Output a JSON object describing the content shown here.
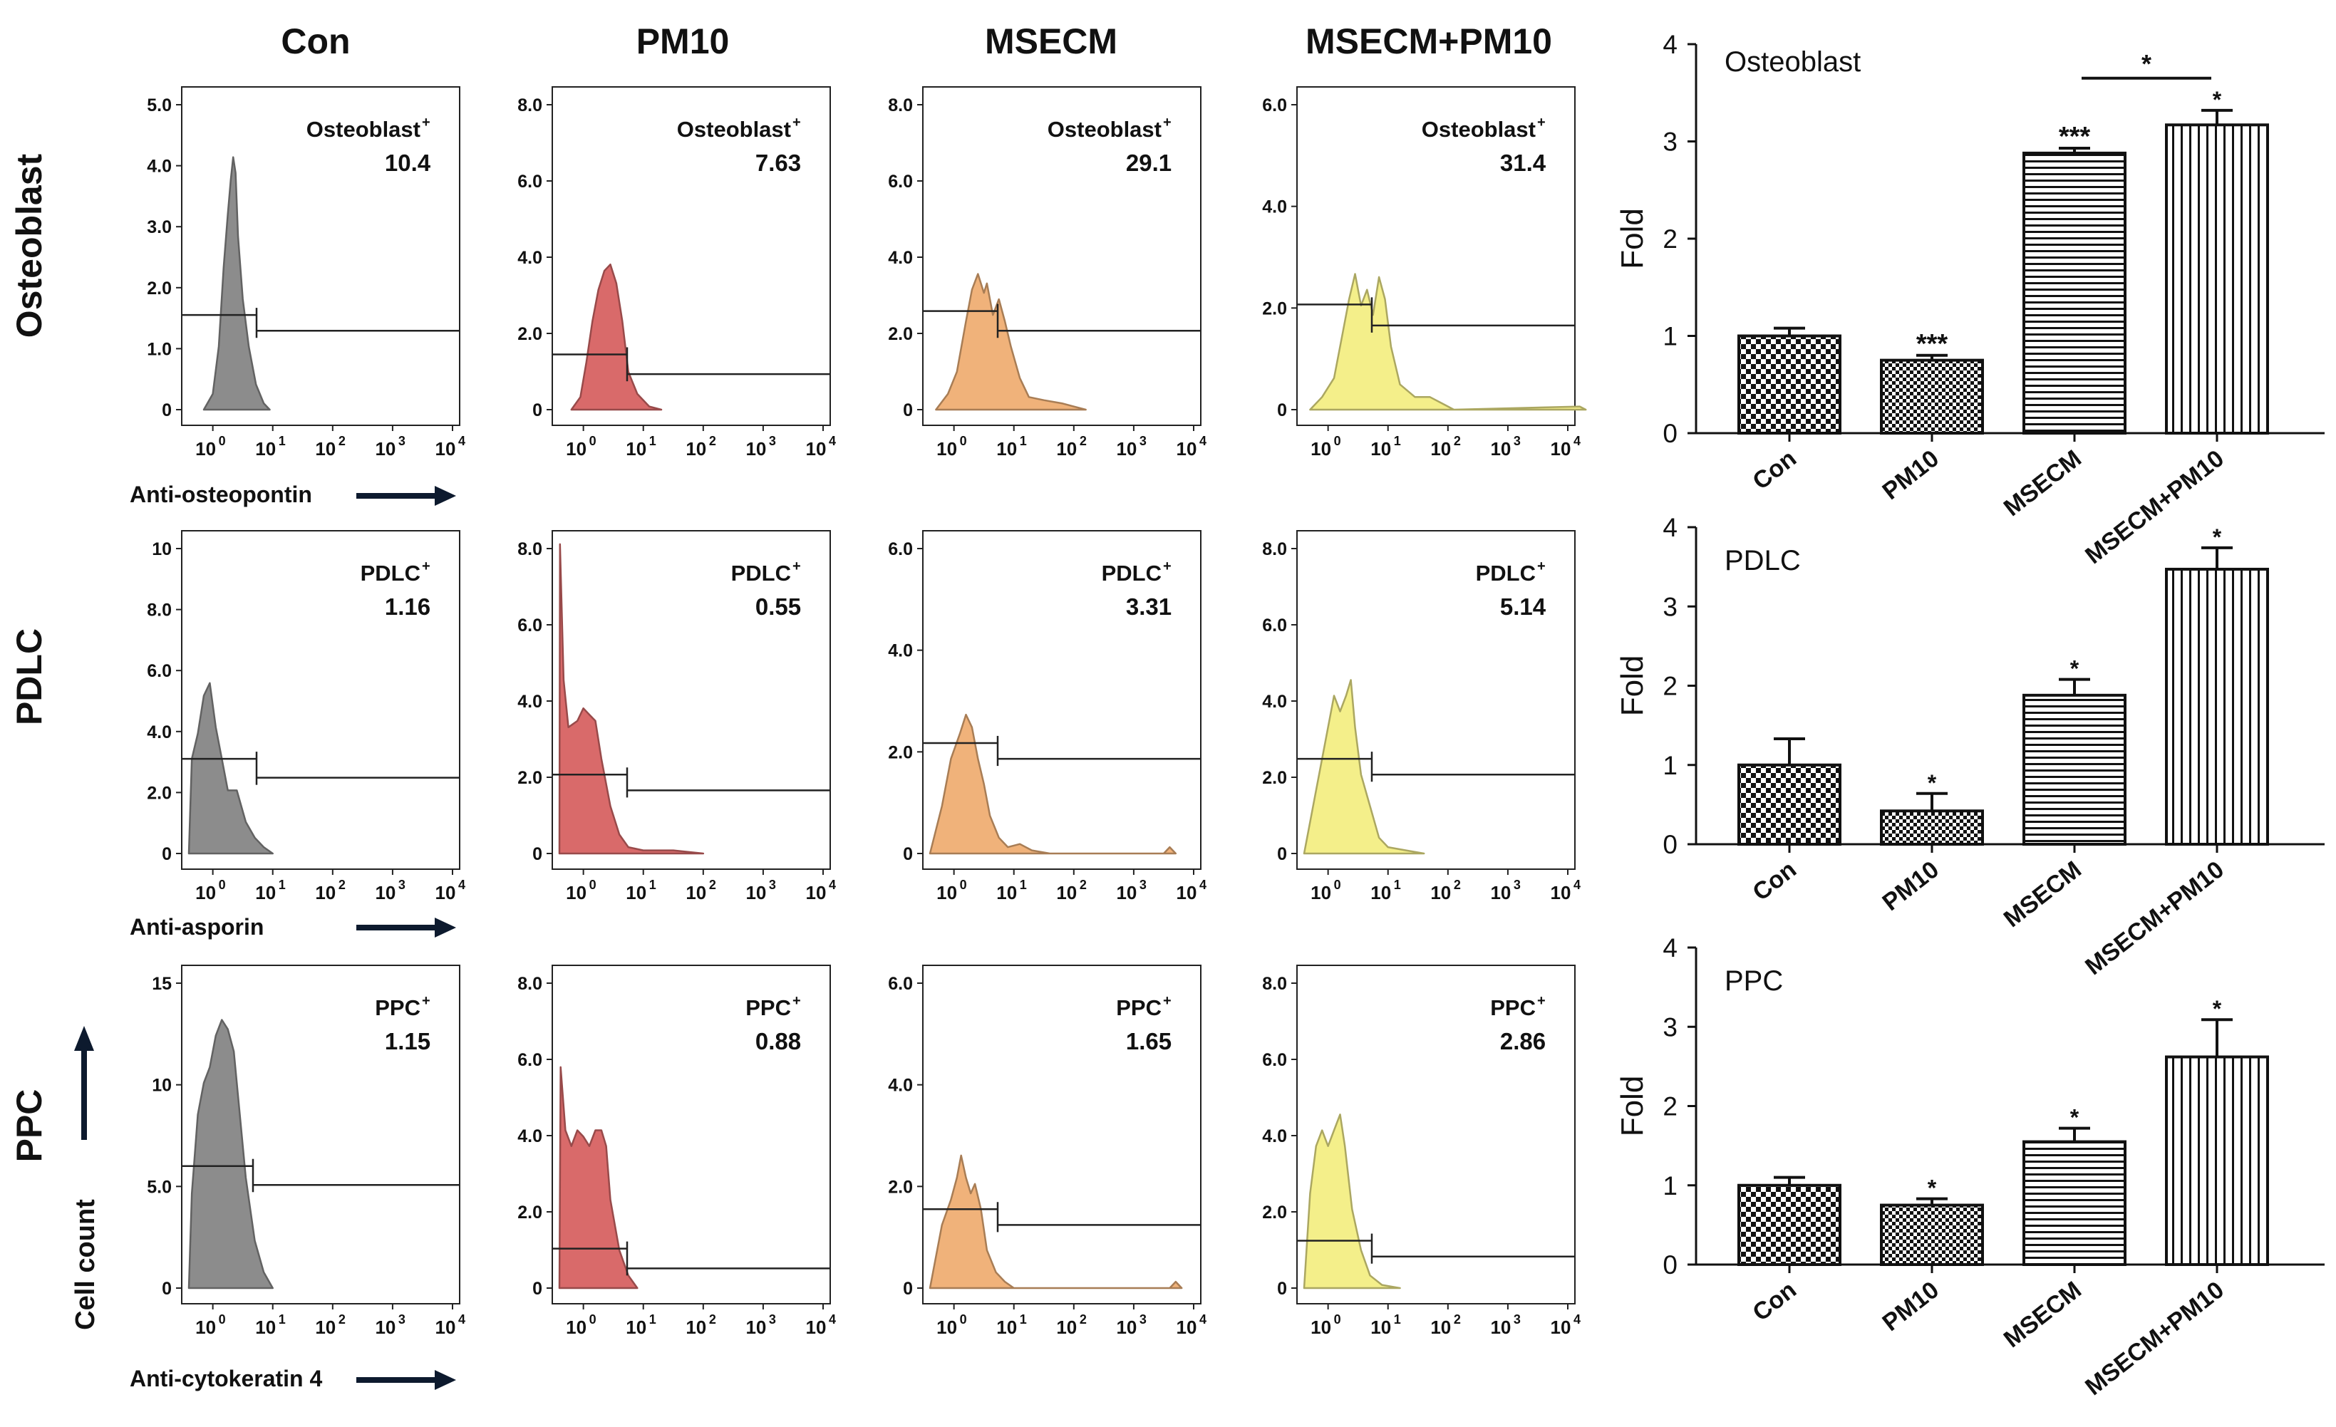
{
  "columns": [
    "Con",
    "PM10",
    "MSECM",
    "MSECM+PM10"
  ],
  "rows": [
    {
      "name": "Osteoblast",
      "marker": "Osteoblast",
      "xlabel": "Anti-osteopontin"
    },
    {
      "name": "PDLC",
      "marker": "PDLC",
      "xlabel": "Anti-asporin"
    },
    {
      "name": "PPC",
      "marker": "PPC",
      "xlabel": "Anti-cytokeratin 4"
    }
  ],
  "yaxis_label": "Cell count",
  "histograms": [
    [
      {
        "yticks": [
          "5.0",
          "4.0",
          "3.0",
          "2.0",
          "1.0",
          "0"
        ],
        "ymax": 5.0,
        "percent": "10.4",
        "color": "#8c8c8c",
        "gate": [
          1.5,
          1.25
        ]
      },
      {
        "yticks": [
          "8.0",
          "6.0",
          "4.0",
          "2.0",
          "0"
        ],
        "ymax": 8.0,
        "percent": "7.63",
        "color": "#d96a6a",
        "gate": [
          1.4,
          0.9
        ]
      },
      {
        "yticks": [
          "8.0",
          "6.0",
          "4.0",
          "2.0",
          "0"
        ],
        "ymax": 8.0,
        "percent": "29.1",
        "color": "#f0b27a",
        "gate": [
          2.5,
          2.0
        ]
      },
      {
        "yticks": [
          "6.0",
          "4.0",
          "2.0",
          "0"
        ],
        "ymax": 6.0,
        "percent": "31.4",
        "color": "#f4ef8a",
        "gate": [
          2.0,
          1.6
        ]
      }
    ],
    [
      {
        "yticks": [
          "10",
          "8.0",
          "6.0",
          "4.0",
          "2.0",
          "0"
        ],
        "ymax": 10.0,
        "percent": "1.16",
        "color": "#8c8c8c",
        "gate": [
          3.0,
          2.4
        ]
      },
      {
        "yticks": [
          "8.0",
          "6.0",
          "4.0",
          "2.0",
          "0"
        ],
        "ymax": 8.0,
        "percent": "0.55",
        "color": "#d96a6a",
        "gate": [
          2.0,
          1.6
        ]
      },
      {
        "yticks": [
          "6.0",
          "4.0",
          "2.0",
          "0"
        ],
        "ymax": 6.0,
        "percent": "3.31",
        "color": "#f0b27a",
        "gate": [
          2.1,
          1.8
        ]
      },
      {
        "yticks": [
          "8.0",
          "6.0",
          "4.0",
          "2.0",
          "0"
        ],
        "ymax": 8.0,
        "percent": "5.14",
        "color": "#f4ef8a",
        "gate": [
          2.4,
          2.0
        ]
      }
    ],
    [
      {
        "yticks": [
          "15",
          "10",
          "5.0",
          "0"
        ],
        "ymax": 15.0,
        "percent": "1.15",
        "color": "#8c8c8c",
        "gate": [
          5.8,
          4.9
        ]
      },
      {
        "yticks": [
          "8.0",
          "6.0",
          "4.0",
          "2.0",
          "0"
        ],
        "ymax": 8.0,
        "percent": "0.88",
        "color": "#d96a6a",
        "gate": [
          1.0,
          0.5
        ]
      },
      {
        "yticks": [
          "6.0",
          "4.0",
          "2.0",
          "0"
        ],
        "ymax": 6.0,
        "percent": "1.65",
        "color": "#f0b27a",
        "gate": [
          1.5,
          1.2
        ]
      },
      {
        "yticks": [
          "8.0",
          "6.0",
          "4.0",
          "2.0",
          "0"
        ],
        "ymax": 8.0,
        "percent": "2.86",
        "color": "#f4ef8a",
        "gate": [
          1.2,
          0.8
        ]
      }
    ]
  ],
  "chart_data": [
    {
      "type": "bar",
      "title": "Osteoblast",
      "categories": [
        "Con",
        "PM10",
        "MSECM",
        "MSECM+PM10"
      ],
      "values": [
        1.0,
        0.75,
        2.88,
        3.17
      ],
      "errors": [
        0.08,
        0.05,
        0.05,
        0.15
      ],
      "significance": [
        "",
        "***",
        "***",
        "*"
      ],
      "bracket": {
        "from": 2,
        "to": 3,
        "label": "*"
      },
      "ylabel": "Fold",
      "ylim": [
        0,
        4
      ],
      "yticks": [
        0,
        1,
        2,
        3,
        4
      ]
    },
    {
      "type": "bar",
      "title": "PDLC",
      "categories": [
        "Con",
        "PM10",
        "MSECM",
        "MSECM+PM10"
      ],
      "values": [
        1.0,
        0.42,
        1.88,
        3.47
      ],
      "errors": [
        0.33,
        0.22,
        0.2,
        0.27
      ],
      "significance": [
        "",
        "*",
        "*",
        "*"
      ],
      "ylabel": "Fold",
      "ylim": [
        0,
        4
      ],
      "yticks": [
        0,
        1,
        2,
        3,
        4
      ]
    },
    {
      "type": "bar",
      "title": "PPC",
      "categories": [
        "Con",
        "PM10",
        "MSECM",
        "MSECM+PM10"
      ],
      "values": [
        1.0,
        0.75,
        1.55,
        2.62
      ],
      "errors": [
        0.1,
        0.08,
        0.17,
        0.47
      ],
      "significance": [
        "",
        "*",
        "*",
        "*"
      ],
      "ylabel": "Fold",
      "ylim": [
        0,
        4
      ],
      "yticks": [
        0,
        1,
        2,
        3,
        4
      ]
    }
  ]
}
